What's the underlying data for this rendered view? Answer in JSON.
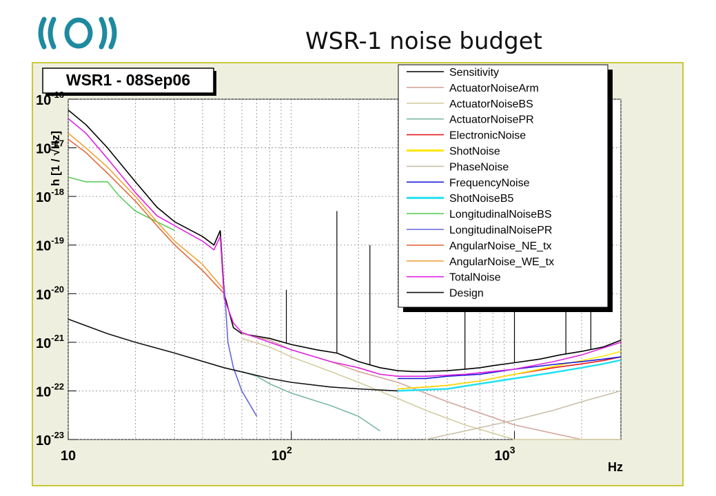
{
  "slide": {
    "title": "WSR-1 noise budget"
  },
  "logo": {
    "icon": "ego-virgo-logo-icon",
    "color": "#1e8aa0"
  },
  "chart_data": {
    "type": "line",
    "title": "WSR1 - 08Sep06",
    "xlabel": "Hz",
    "ylabel": "h [1 / √Hz]",
    "x_scale": "log",
    "y_scale": "log",
    "xlim": [
      10,
      3000
    ],
    "ylim": [
      1e-23,
      1e-16
    ],
    "x_ticks": [
      {
        "value": 10,
        "base": "10",
        "exp": ""
      },
      {
        "value": 100,
        "base": "10",
        "exp": "2"
      },
      {
        "value": 1000,
        "base": "10",
        "exp": "3"
      }
    ],
    "y_ticks": [
      {
        "value": 1e-23,
        "base": "10",
        "exp": "-23"
      },
      {
        "value": 1e-22,
        "base": "10",
        "exp": "-22"
      },
      {
        "value": 1e-21,
        "base": "10",
        "exp": "-21"
      },
      {
        "value": 1e-20,
        "base": "10",
        "exp": "-20"
      },
      {
        "value": 1e-19,
        "base": "10",
        "exp": "-19"
      },
      {
        "value": 1e-18,
        "base": "10",
        "exp": "-18"
      },
      {
        "value": 1e-17,
        "base": "10",
        "exp": "-17"
      },
      {
        "value": 1e-16,
        "base": "10",
        "exp": "-16"
      }
    ],
    "grid": true,
    "legend_position": "top-right",
    "series": [
      {
        "name": "Sensitivity",
        "color": "#000000",
        "x": [
          10,
          12,
          15,
          20,
          25,
          30,
          40,
          45,
          48,
          50,
          55,
          60,
          80,
          100,
          130,
          160,
          200,
          250,
          300,
          350,
          400,
          500,
          600,
          700,
          800,
          1000,
          1300,
          1600,
          2000,
          2500,
          3000
        ],
        "y": [
          6e-17,
          3e-17,
          1e-17,
          2e-18,
          6e-19,
          3e-19,
          1.5e-19,
          1e-19,
          2e-19,
          1e-20,
          2e-21,
          1.5e-21,
          1.2e-21,
          9e-22,
          7e-22,
          6e-22,
          4e-22,
          3e-22,
          2.6e-22,
          2.5e-22,
          2.5e-22,
          2.6e-22,
          2.8e-22,
          3e-22,
          3.3e-22,
          3.8e-22,
          4.5e-22,
          5.5e-22,
          6.5e-22,
          8e-22,
          1.1e-21
        ],
        "peaks": [
          {
            "x": 48,
            "y": 1.5e-19
          },
          {
            "x": 95,
            "y": 1.2e-20
          },
          {
            "x": 160,
            "y": 5e-19
          },
          {
            "x": 225,
            "y": 1e-19
          },
          {
            "x": 600,
            "y": 2e-19
          },
          {
            "x": 1000,
            "y": 3e-20
          },
          {
            "x": 1700,
            "y": 2e-19
          },
          {
            "x": 2200,
            "y": 2e-17
          }
        ]
      },
      {
        "name": "ActuatorNoiseArm",
        "color": "#d4a79a",
        "x": [
          60,
          80,
          100,
          150,
          200,
          300,
          500,
          1000,
          2000,
          3000
        ],
        "y": [
          1.5e-21,
          1.1e-21,
          7e-22,
          4e-22,
          2.5e-22,
          1.5e-22,
          6e-23,
          2e-23,
          1e-23,
          1e-23
        ]
      },
      {
        "name": "ActuatorNoiseBS",
        "color": "#d2cda0",
        "x": [
          60,
          80,
          100,
          150,
          200,
          300,
          400,
          600,
          1000,
          2000,
          3000
        ],
        "y": [
          1.2e-21,
          8e-22,
          5e-22,
          2.5e-22,
          1.5e-22,
          7e-23,
          4e-23,
          2e-23,
          1e-23,
          1e-23,
          1e-23
        ]
      },
      {
        "name": "ActuatorNoisePR",
        "color": "#7bb8a2",
        "x": [
          60,
          70,
          80,
          100,
          150,
          200,
          250
        ],
        "y": [
          2.5e-22,
          2e-22,
          1.4e-22,
          9e-23,
          5e-23,
          3e-23,
          1.5e-23
        ]
      },
      {
        "name": "ElectronicNoise",
        "color": "#e41a1c",
        "x": [
          300,
          400,
          500,
          700,
          1000,
          1500,
          2000,
          2500,
          3000
        ],
        "y": [
          1.1e-22,
          1.2e-22,
          1.3e-22,
          1.6e-22,
          2.2e-22,
          3e-22,
          3.6e-22,
          4.2e-22,
          5e-22
        ]
      },
      {
        "name": "ShotNoise",
        "color": "#ffe600",
        "x": [
          300,
          500,
          700,
          1000,
          1500,
          2000,
          2500,
          3000
        ],
        "y": [
          1.1e-22,
          1.3e-22,
          1.6e-22,
          2.2e-22,
          3.2e-22,
          4.2e-22,
          5.2e-22,
          6.5e-22
        ]
      },
      {
        "name": "PhaseNoise",
        "color": "#c8bfa6",
        "x": [
          400,
          600,
          1000,
          1500,
          2000,
          3000
        ],
        "y": [
          1e-23,
          1.5e-23,
          2.5e-23,
          4e-23,
          6e-23,
          1e-22
        ]
      },
      {
        "name": "FrequencyNoise",
        "color": "#1a1ad6",
        "x": [
          300,
          400,
          500,
          700,
          1000,
          1500,
          2000,
          2500,
          3000
        ],
        "y": [
          1.8e-22,
          1.8e-22,
          2e-22,
          2.2e-22,
          2.8e-22,
          3.5e-22,
          4e-22,
          4.5e-22,
          5e-22
        ]
      },
      {
        "name": "ShotNoiseB5",
        "color": "#22e0f0",
        "x": [
          300,
          500,
          700,
          1000,
          1500,
          2000,
          2500,
          3000
        ],
        "y": [
          1e-22,
          1.1e-22,
          1.4e-22,
          1.8e-22,
          2.4e-22,
          3e-22,
          3.6e-22,
          4.3e-22
        ]
      },
      {
        "name": "LongitudinalNoiseBS",
        "color": "#5dcc5d",
        "x": [
          10,
          12,
          15,
          17,
          20,
          25,
          30
        ],
        "y": [
          2.5e-18,
          2e-18,
          2e-18,
          1e-18,
          5e-19,
          3e-19,
          2e-19
        ]
      },
      {
        "name": "LongitudinalNoisePR",
        "color": "#6464dd",
        "x": [
          50,
          52,
          55,
          60,
          70
        ],
        "y": [
          1.5e-20,
          1e-21,
          3e-22,
          1e-22,
          3e-23
        ]
      },
      {
        "name": "AngularNoise_NE_tx",
        "color": "#e06a3a",
        "x": [
          10,
          12,
          15,
          20,
          25,
          30,
          40,
          50
        ],
        "y": [
          1.5e-17,
          8e-18,
          3e-18,
          8e-19,
          2.5e-19,
          1e-19,
          3e-20,
          1e-20
        ]
      },
      {
        "name": "AngularNoise_WE_tx",
        "color": "#f0a23a",
        "x": [
          10,
          12,
          15,
          20,
          25,
          30,
          40,
          50
        ],
        "y": [
          2e-17,
          1e-17,
          4e-18,
          1e-18,
          3e-19,
          1.2e-19,
          4e-20,
          1.2e-20
        ]
      },
      {
        "name": "TotalNoise",
        "color": "#e022e0",
        "x": [
          10,
          12,
          15,
          20,
          25,
          30,
          40,
          45,
          48,
          50,
          55,
          60,
          80,
          100,
          150,
          200,
          250,
          300,
          400,
          600,
          1000,
          1500,
          2000,
          3000
        ],
        "y": [
          4e-17,
          2e-17,
          6e-18,
          1.2e-18,
          4e-19,
          2.5e-19,
          1.2e-19,
          8e-20,
          1.5e-19,
          8e-21,
          2.5e-21,
          1.6e-21,
          1e-21,
          7e-22,
          4e-22,
          3e-22,
          2.2e-22,
          2e-22,
          2e-22,
          2.2e-22,
          2.8e-22,
          4e-22,
          5.5e-22,
          1e-21
        ]
      },
      {
        "name": "Design",
        "color": "#111111",
        "x": [
          10,
          15,
          20,
          30,
          50,
          80,
          100,
          150,
          200,
          300
        ],
        "y": [
          3e-21,
          1.5e-21,
          1e-21,
          6e-22,
          3e-22,
          1.8e-22,
          1.5e-22,
          1.2e-22,
          1.1e-22,
          1e-22
        ]
      }
    ]
  }
}
